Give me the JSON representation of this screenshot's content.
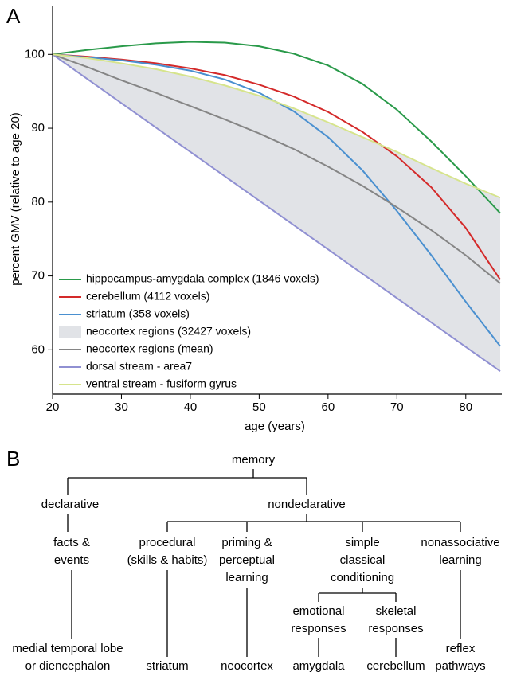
{
  "panel_a": "A",
  "panel_b": "B",
  "chart_data": {
    "type": "line",
    "xlabel": "age (years)",
    "ylabel": "percent GMV (relative to age 20)",
    "x": [
      20,
      25,
      30,
      35,
      40,
      45,
      50,
      55,
      60,
      65,
      70,
      75,
      80,
      85
    ],
    "xlim": [
      20,
      85
    ],
    "ylim": [
      54,
      106.5
    ],
    "xticks": [
      20,
      30,
      40,
      50,
      60,
      70,
      80
    ],
    "yticks": [
      60,
      70,
      80,
      90,
      100
    ],
    "legend": "lower left",
    "series": [
      {
        "name": "hippocampus-amygdala complex (1846 voxels)",
        "color": "#2a9a4a",
        "values": [
          100,
          100.6,
          101.1,
          101.5,
          101.7,
          101.6,
          101.1,
          100.1,
          98.5,
          96.0,
          92.5,
          88.2,
          83.5,
          78.5
        ]
      },
      {
        "name": "cerebellum (4112 voxels)",
        "color": "#d42a2a",
        "values": [
          100,
          99.7,
          99.3,
          98.8,
          98.1,
          97.2,
          95.9,
          94.3,
          92.2,
          89.5,
          86.2,
          82.0,
          76.5,
          69.5
        ]
      },
      {
        "name": "striatum (358 voxels)",
        "color": "#4a90d0",
        "values": [
          100,
          99.6,
          99.2,
          98.6,
          97.8,
          96.6,
          94.8,
          92.3,
          88.8,
          84.3,
          78.8,
          72.8,
          66.5,
          60.5
        ]
      },
      {
        "name": "neocortex regions (32427 voxels)",
        "color": "#e1e3e7",
        "band": true,
        "high": [
          100,
          99.5,
          98.8,
          98.0,
          97.0,
          95.8,
          94.4,
          92.7,
          90.8,
          88.8,
          86.8,
          84.6,
          82.5,
          80.6
        ],
        "low": [
          100,
          96.7,
          93.4,
          90.1,
          86.8,
          83.5,
          80.2,
          76.9,
          73.6,
          70.3,
          67.0,
          63.7,
          60.4,
          57.1
        ]
      },
      {
        "name": "neocortex regions (mean)",
        "color": "#858585",
        "values": [
          100,
          98.3,
          96.5,
          94.8,
          93.0,
          91.2,
          89.3,
          87.2,
          84.8,
          82.2,
          79.3,
          76.2,
          72.8,
          69.0
        ]
      },
      {
        "name": "dorsal stream - area7",
        "color": "#9090d2",
        "values": [
          100,
          96.7,
          93.4,
          90.1,
          86.8,
          83.5,
          80.2,
          76.9,
          73.6,
          70.3,
          67.0,
          63.7,
          60.4,
          57.1
        ]
      },
      {
        "name": "ventral stream - fusiform gyrus",
        "color": "#d6e48c",
        "values": [
          100,
          99.5,
          98.8,
          98.0,
          97.0,
          95.8,
          94.4,
          92.7,
          90.8,
          88.8,
          86.8,
          84.6,
          82.5,
          80.6
        ]
      }
    ]
  },
  "diagram": {
    "root": "memory",
    "branches": [
      "declarative",
      "nondeclarative"
    ],
    "nodes": [
      {
        "lines": [
          "facts &",
          "events"
        ]
      },
      {
        "lines": [
          "procedural",
          "(skills & habits)"
        ]
      },
      {
        "lines": [
          "priming &",
          "perceptual",
          "learning"
        ]
      },
      {
        "lines": [
          "simple",
          "classical",
          "conditioning"
        ]
      },
      {
        "lines": [
          "nonassociative",
          "learning"
        ]
      },
      {
        "lines": [
          "emotional",
          "responses"
        ]
      },
      {
        "lines": [
          "skeletal",
          "responses"
        ]
      }
    ],
    "leaves": [
      {
        "lines": [
          "medial temporal lobe",
          "or diencephalon"
        ],
        "color": "#4cb84c"
      },
      {
        "lines": [
          "striatum"
        ],
        "color": "#4a90d0"
      },
      {
        "lines": [
          "neocortex"
        ],
        "color": "#8a8a8a"
      },
      {
        "lines": [
          "amygdala"
        ],
        "color": "#2faa3a"
      },
      {
        "lines": [
          "cerebellum"
        ],
        "color": "#d42a2a"
      },
      {
        "lines": [
          "reflex",
          "pathways"
        ],
        "color": "#000000"
      }
    ]
  }
}
